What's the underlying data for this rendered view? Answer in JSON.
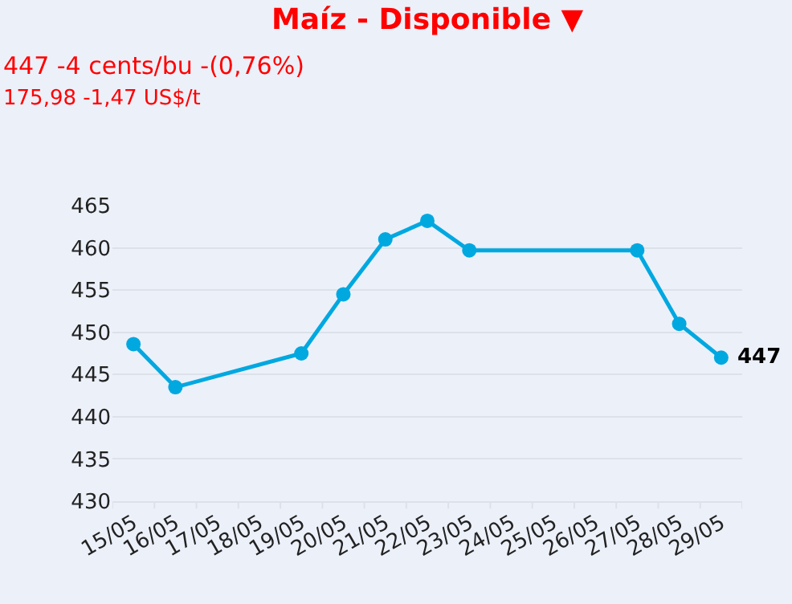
{
  "chart_data": {
    "type": "line",
    "title": "Maíz - Disponible ▼",
    "subtitle": "447 -4 cents/bu -(0,76%)",
    "annotations": [
      "175,98 -1,47 US$/t",
      {
        "text": "447",
        "x": "29/05",
        "y": 447
      }
    ],
    "categories": [
      "15/05",
      "16/05",
      "17/05",
      "18/05",
      "19/05",
      "20/05",
      "21/05",
      "22/05",
      "23/05",
      "24/05",
      "25/05",
      "26/05",
      "27/05",
      "28/05",
      "29/05"
    ],
    "series": [
      {
        "color": "#00a8e0",
        "values": [
          448.6,
          443.5,
          null,
          null,
          447.5,
          454.5,
          461,
          463.2,
          459.7,
          null,
          null,
          null,
          459.7,
          451,
          447
        ]
      }
    ],
    "ylim": [
      430,
      465
    ],
    "yticks": [
      430,
      435,
      440,
      445,
      450,
      455,
      460,
      465
    ],
    "grid": "y",
    "marker": "circle",
    "line_style": "solid"
  }
}
